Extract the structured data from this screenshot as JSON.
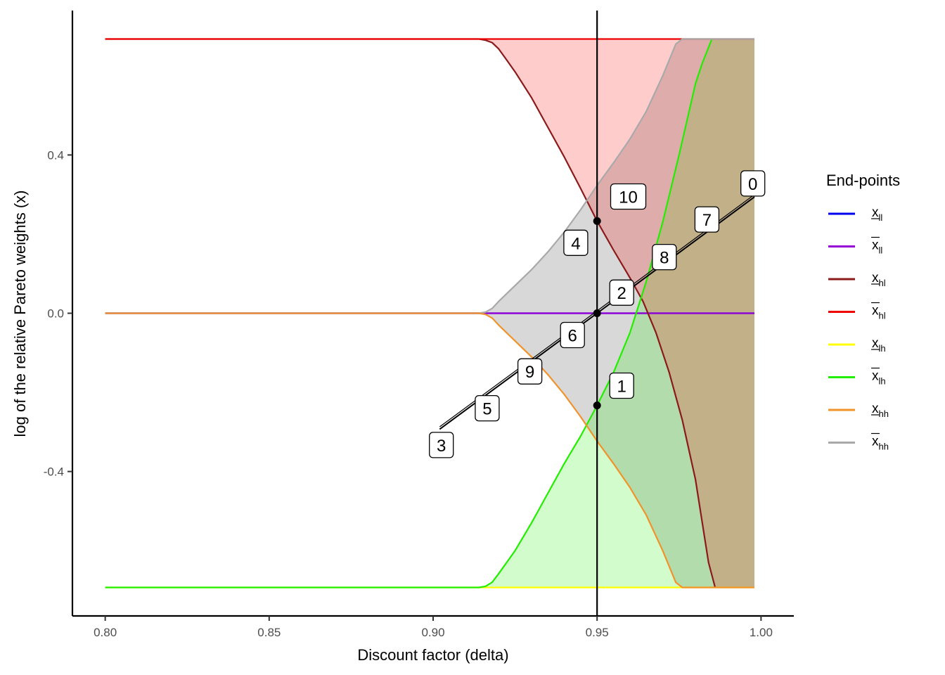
{
  "chart_data": {
    "type": "area",
    "title": "",
    "xlabel": "Discount factor (delta)",
    "ylabel": "log of the relative Pareto weights (x)",
    "xlim": [
      0.79,
      1.01
    ],
    "ylim": [
      -0.765,
      0.765
    ],
    "x_ticks": [
      "0.80",
      "0.85",
      "0.90",
      "0.95",
      "1.00"
    ],
    "x_tick_values": [
      0.8,
      0.85,
      0.9,
      0.95,
      1.0
    ],
    "y_ticks": [
      "0.4",
      "0.0",
      "-0.4"
    ],
    "y_tick_values": [
      0.4,
      0.0,
      -0.4
    ],
    "grid": false,
    "vline": 0.95,
    "legend": {
      "title": "End-points",
      "position": "right",
      "entries": [
        {
          "base": "x",
          "bar": "under",
          "sub": "ll",
          "color": "#0000ee"
        },
        {
          "base": "x",
          "bar": "over",
          "sub": "ll",
          "color": "#9400d3"
        },
        {
          "base": "x",
          "bar": "under",
          "sub": "hl",
          "color": "#8b1a1a"
        },
        {
          "base": "x",
          "bar": "over",
          "sub": "hl",
          "color": "#ee0000"
        },
        {
          "base": "x",
          "bar": "under",
          "sub": "lh",
          "color": "#ffff00"
        },
        {
          "base": "x",
          "bar": "over",
          "sub": "lh",
          "color": "#22ee00"
        },
        {
          "base": "x",
          "bar": "under",
          "sub": "hh",
          "color": "#f0932b"
        },
        {
          "base": "x",
          "bar": "over",
          "sub": "hh",
          "color": "#a9a9a9"
        }
      ]
    },
    "series": [
      {
        "key": "x_ll_lower",
        "color": "#0000ee",
        "x": [
          0.8,
          0.998
        ],
        "y": [
          0.0,
          0.0
        ]
      },
      {
        "key": "x_ll_upper",
        "color": "#9400d3",
        "x": [
          0.8,
          0.998
        ],
        "y": [
          0.0,
          0.0
        ]
      },
      {
        "key": "x_hl_upper",
        "color": "#ee0000",
        "x": [
          0.8,
          0.998
        ],
        "y": [
          0.693,
          0.693
        ]
      },
      {
        "key": "x_hl_lower",
        "color": "#8b1a1a",
        "x": [
          0.8,
          0.914,
          0.916,
          0.918,
          0.92,
          0.922,
          0.925,
          0.93,
          0.935,
          0.94,
          0.945,
          0.95,
          0.955,
          0.96,
          0.964,
          0.968,
          0.972,
          0.976,
          0.98,
          0.984,
          0.986
        ],
        "y": [
          0.693,
          0.693,
          0.69,
          0.684,
          0.668,
          0.645,
          0.61,
          0.545,
          0.47,
          0.395,
          0.315,
          0.233,
          0.16,
          0.09,
          0.03,
          -0.05,
          -0.15,
          -0.27,
          -0.42,
          -0.63,
          -0.693
        ]
      },
      {
        "key": "x_lh_lower",
        "color": "#ffff00",
        "x": [
          0.8,
          0.998
        ],
        "y": [
          -0.693,
          -0.693
        ]
      },
      {
        "key": "x_lh_upper",
        "color": "#22ee00",
        "x": [
          0.8,
          0.914,
          0.916,
          0.918,
          0.92,
          0.925,
          0.93,
          0.935,
          0.94,
          0.945,
          0.95,
          0.955,
          0.96,
          0.965,
          0.97,
          0.975,
          0.98,
          0.982,
          0.985
        ],
        "y": [
          -0.693,
          -0.693,
          -0.69,
          -0.68,
          -0.658,
          -0.6,
          -0.53,
          -0.455,
          -0.38,
          -0.31,
          -0.233,
          -0.15,
          -0.05,
          0.08,
          0.23,
          0.4,
          0.58,
          0.63,
          0.693
        ]
      },
      {
        "key": "x_hh_lower",
        "color": "#f0932b",
        "x": [
          0.8,
          0.914,
          0.916,
          0.918,
          0.92,
          0.925,
          0.93,
          0.935,
          0.94,
          0.945,
          0.95,
          0.955,
          0.96,
          0.965,
          0.97,
          0.974,
          0.976,
          0.998
        ],
        "y": [
          0.0,
          0.0,
          -0.003,
          -0.012,
          -0.03,
          -0.07,
          -0.11,
          -0.155,
          -0.205,
          -0.262,
          -0.323,
          -0.38,
          -0.44,
          -0.51,
          -0.6,
          -0.68,
          -0.693,
          -0.693
        ]
      },
      {
        "key": "x_hh_upper",
        "color": "#a9a9a9",
        "x": [
          0.8,
          0.914,
          0.916,
          0.918,
          0.92,
          0.925,
          0.93,
          0.935,
          0.94,
          0.945,
          0.95,
          0.955,
          0.96,
          0.965,
          0.97,
          0.974,
          0.976,
          0.998
        ],
        "y": [
          0.0,
          0.0,
          0.003,
          0.012,
          0.03,
          0.07,
          0.11,
          0.155,
          0.205,
          0.262,
          0.323,
          0.38,
          0.44,
          0.51,
          0.6,
          0.68,
          0.693,
          0.693
        ]
      }
    ],
    "points": [
      {
        "x": 0.95,
        "y": 0.233
      },
      {
        "x": 0.95,
        "y": 0.0
      },
      {
        "x": 0.95,
        "y": -0.233
      }
    ],
    "path_line": {
      "x": [
        0.902,
        0.95,
        0.998
      ],
      "y": [
        -0.293,
        0.0,
        0.294
      ]
    },
    "annotations": [
      {
        "label": "0",
        "x": 0.9975,
        "y": 0.328
      },
      {
        "label": "1",
        "x": 0.9575,
        "y": -0.183
      },
      {
        "label": "2",
        "x": 0.9575,
        "y": 0.052
      },
      {
        "label": "3",
        "x": 0.9025,
        "y": -0.333
      },
      {
        "label": "4",
        "x": 0.9435,
        "y": 0.178
      },
      {
        "label": "5",
        "x": 0.9165,
        "y": -0.24
      },
      {
        "label": "6",
        "x": 0.9425,
        "y": -0.055
      },
      {
        "label": "7",
        "x": 0.9835,
        "y": 0.237
      },
      {
        "label": "8",
        "x": 0.9705,
        "y": 0.142
      },
      {
        "label": "9",
        "x": 0.9295,
        "y": -0.147
      },
      {
        "label": "10",
        "x": 0.9595,
        "y": 0.295
      }
    ]
  }
}
